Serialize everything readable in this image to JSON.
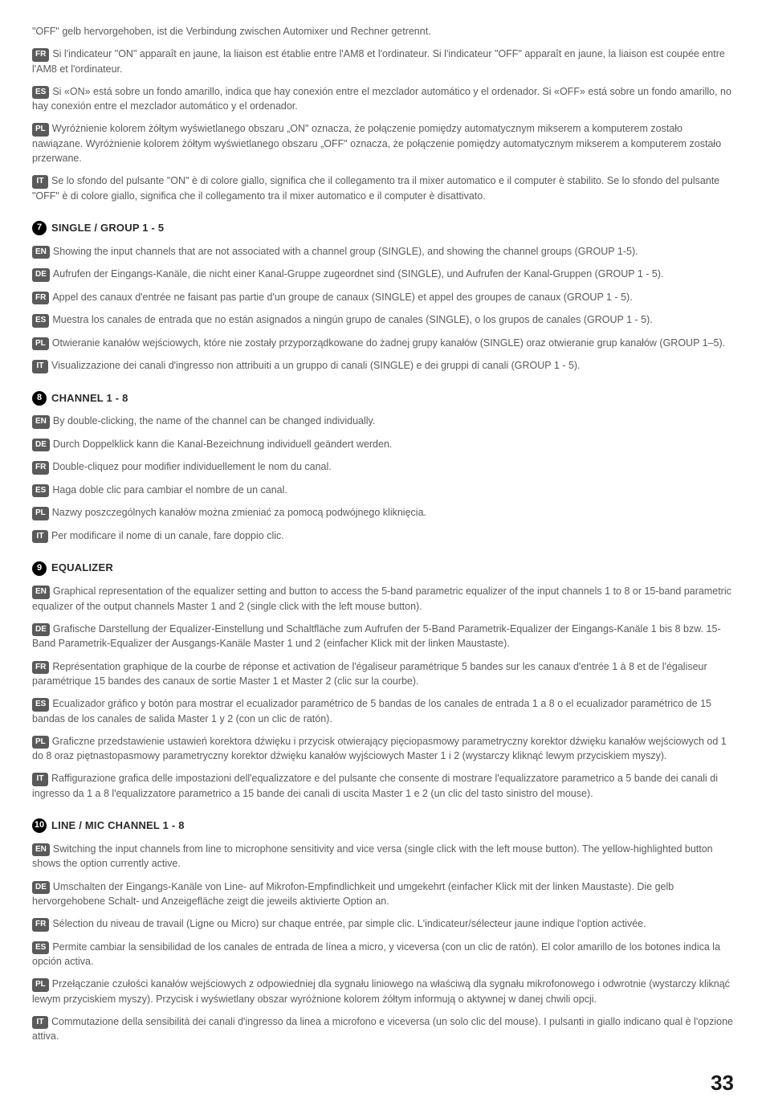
{
  "intro": [
    {
      "text": "\"OFF\" gelb hervorgehoben, ist die Verbindung zwischen Automixer und Rechner getrennt."
    },
    {
      "lang": "FR",
      "text": "Si l'indicateur \"ON\" apparaît en jaune, la liaison est établie entre l'AM8 et l'ordinateur. Si l'indicateur \"OFF\" apparaît en jaune, la liaison est coupée entre l'AM8 et l'ordinateur."
    },
    {
      "lang": "ES",
      "text": "Si «ON» está sobre un fondo amarillo, indica que hay conexión entre el mezclador automático y el ordenador. Si «OFF» está sobre un fondo amarillo, no hay conexión entre el mezclador automático y el ordenador."
    },
    {
      "lang": "PL",
      "text": "Wyróżnienie kolorem żółtym wyświetlanego obszaru „ON\" oznacza, że połączenie pomiędzy automatycznym mikserem a komputerem zostało nawiązane. Wyróżnienie kolorem żółtym wyświetlanego obszaru „OFF\" oznacza, że połączenie pomiędzy automatycznym mikserem a komputerem zostało przerwane."
    },
    {
      "lang": "IT",
      "text": "Se lo sfondo del pulsante \"ON\" è di colore giallo, significa che il collegamento tra il mixer automatico e il computer è stabilito. Se lo sfondo del pulsante \"OFF\" è di colore giallo, significa che il collegamento tra il mixer automatico e il computer è disattivato."
    }
  ],
  "sections": [
    {
      "num": "7",
      "title": "SINGLE / GROUP 1 - 5",
      "paras": [
        {
          "lang": "EN",
          "text": "Showing the input channels that are not associated with a channel group (SINGLE), and showing the channel groups (GROUP 1-5)."
        },
        {
          "lang": "DE",
          "text": "Aufrufen der Eingangs-Kanäle, die nicht einer Kanal-Gruppe zugeordnet sind (SINGLE), und Aufrufen der Kanal-Gruppen (GROUP 1 - 5)."
        },
        {
          "lang": "FR",
          "text": "Appel des canaux d'entrée ne faisant pas partie d'un groupe de canaux (SINGLE) et appel des groupes de canaux (GROUP 1 - 5)."
        },
        {
          "lang": "ES",
          "text": "Muestra los canales de entrada que no están asignados a ningún grupo de canales (SINGLE), o los grupos de canales (GROUP 1 - 5)."
        },
        {
          "lang": "PL",
          "text": "Otwieranie kanałów wejściowych, które nie zostały przyporządkowane do żadnej grupy kanałów (SINGLE) oraz otwieranie grup kanałów (GROUP 1–5)."
        },
        {
          "lang": "IT",
          "text": "Visualizzazione dei canali d'ingresso non attribuiti a un gruppo di canali (SINGLE) e dei gruppi di canali (GROUP 1 - 5)."
        }
      ]
    },
    {
      "num": "8",
      "title": "CHANNEL 1 - 8",
      "paras": [
        {
          "lang": "EN",
          "text": "By double-clicking, the name of the channel can be changed individually."
        },
        {
          "lang": "DE",
          "text": "Durch Doppelklick kann die Kanal-Bezeichnung individuell geändert werden."
        },
        {
          "lang": "FR",
          "text": "Double-cliquez pour modifier individuellement le nom du canal."
        },
        {
          "lang": "ES",
          "text": "Haga doble clic para cambiar el nombre de un canal."
        },
        {
          "lang": "PL",
          "text": "Nazwy poszczególnych kanałów można zmieniać za pomocą podwójnego kliknięcia."
        },
        {
          "lang": "IT",
          "text": "Per modificare il nome di un canale, fare doppio clic."
        }
      ]
    },
    {
      "num": "9",
      "title": "EQUALIZER",
      "paras": [
        {
          "lang": "EN",
          "text": "Graphical representation of the equalizer setting and button to access the 5-band parametric equalizer of the input channels 1 to 8 or 15-band parametric equalizer of the output channels Master 1 and 2 (single click with the left mouse button)."
        },
        {
          "lang": "DE",
          "text": "Grafische Darstellung der Equalizer-Einstellung und Schaltfläche zum Aufrufen der 5-Band Parametrik-Equalizer der Eingangs-Kanäle 1 bis 8 bzw. 15-Band Parametrik-Equalizer der Ausgangs-Kanäle Master 1 und 2 (einfacher Klick mit der linken Maustaste)."
        },
        {
          "lang": "FR",
          "text": "Représentation graphique de la courbe de réponse et activation de l'égaliseur paramétrique 5 bandes sur les canaux d'entrée 1 à 8 et de l'égaliseur paramétrique 15 bandes des canaux de sortie Master 1 et Master 2 (clic sur la courbe)."
        },
        {
          "lang": "ES",
          "text": "Ecualizador gráfico y botón para mostrar el ecualizador paramétrico de 5 bandas de los canales de entrada 1 a 8 o el ecualizador paramétrico de 15 bandas de los canales de salida Master 1 y 2 (con un clic de ratón)."
        },
        {
          "lang": "PL",
          "text": "Graficzne przedstawienie ustawień korektora dźwięku i przycisk otwierający pięciopasmowy parametryczny korektor dźwięku kanałów wejściowych od 1 do 8 oraz piętnastopasmowy parametryczny korektor dźwięku kanałów wyjściowych Master 1 i 2 (wystarczy kliknąć lewym przyciskiem myszy)."
        },
        {
          "lang": "IT",
          "text": "Raffigurazione grafica delle impostazioni dell'equalizzatore e del pulsante che consente di mostrare l'equalizzatore parametrico a 5 bande dei canali di ingresso da 1 a 8 l'equalizzatore parametrico a 15 bande dei canali di uscita Master 1 e 2 (un clic del tasto sinistro del mouse)."
        }
      ]
    },
    {
      "num": "10",
      "title": "LINE / MIC CHANNEL 1 - 8",
      "paras": [
        {
          "lang": "EN",
          "text": "Switching the input channels from line to microphone sensitivity and vice versa (single click with the left mouse button). The yellow-highlighted button shows the option currently active."
        },
        {
          "lang": "DE",
          "text": "Umschalten der Eingangs-Kanäle von Line- auf Mikrofon-Empfindlichkeit und umgekehrt (einfacher Klick mit der linken Maustaste). Die gelb hervorgehobene Schalt- und Anzeigefläche zeigt die jeweils aktivierte Option an."
        },
        {
          "lang": "FR",
          "text": "Sélection du niveau de travail (Ligne ou Micro) sur chaque entrée, par simple clic. L'indicateur/sélecteur jaune indique l'option activée."
        },
        {
          "lang": "ES",
          "text": "Permite cambiar la sensibilidad de los canales de entrada de línea a micro, y viceversa (con un clic de ratón). El color amarillo de los botones indica la opción activa."
        },
        {
          "lang": "PL",
          "text": "Przełączanie czułości kanałów wejściowych z odpowiedniej dla sygnału liniowego na właściwą dla sygnału mikrofonowego i odwrotnie (wystarczy kliknąć lewym przyciskiem myszy). Przycisk i wyświetlany obszar wyróżnione kolorem żółtym informują o aktywnej w danej chwili opcji."
        },
        {
          "lang": "IT",
          "text": "Commutazione della sensibilità dei canali d'ingresso da linea a microfono e viceversa (un solo clic del mouse). I pulsanti in giallo indicano qual è l'opzione attiva."
        }
      ]
    }
  ],
  "page_number": "33",
  "colors": {
    "body_text": "#5a5a5a",
    "title_text": "#2a2a2a",
    "badge_bg": "#5a5a5a",
    "badge_fg": "#ffffff",
    "circle_bg": "#000000",
    "circle_fg": "#ffffff",
    "page_bg": "#ffffff"
  },
  "typography": {
    "body_fontsize": 12.5,
    "title_fontsize": 13,
    "badge_fontsize": 10,
    "pagenum_fontsize": 26
  }
}
